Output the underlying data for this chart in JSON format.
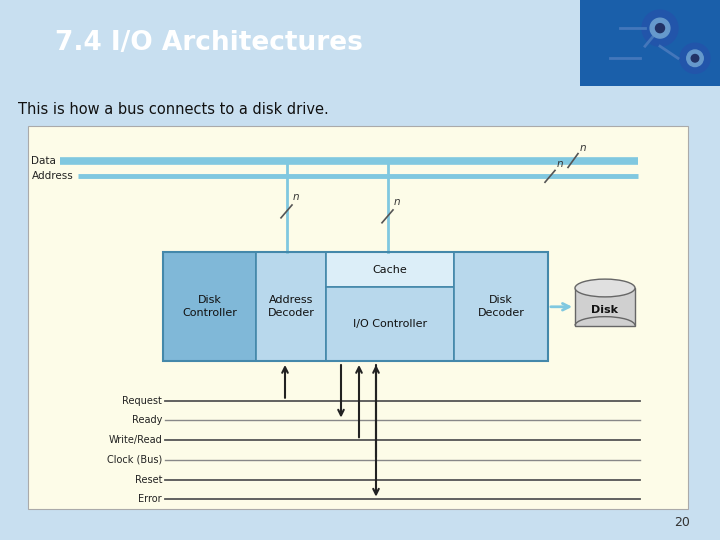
{
  "title": "7.4 I/O Architectures",
  "subtitle": "This is how a bus connects to a disk drive.",
  "title_bg": "#1e6fcc",
  "title_fg": "#ffffff",
  "body_bg": "#c8dff0",
  "diagram_bg": "#fdfce8",
  "page_number": "20",
  "data_bus_color": "#80c8e0",
  "addr_bus_color": "#80c8e0",
  "disk_ctrl_fill": "#80b8d8",
  "addr_dec_fill": "#b8d8ec",
  "io_ctrl_fill": "#b8d8ec",
  "cache_fill": "#dceef8",
  "disk_dec_fill": "#b8d8ec",
  "box_border": "#4488aa",
  "arrow_color": "#222222",
  "line_color": "#555555",
  "ctrl_line_color": "#444444",
  "light_line_color": "#888888",
  "labels": {
    "data": "Data",
    "address": "Address",
    "n": "n",
    "disk_controller": "Disk\nController",
    "address_decoder": "Address\nDecoder",
    "io_controller": "I/O Controller",
    "cache": "Cache",
    "disk_decoder": "Disk\nDecoder",
    "disk": "Disk",
    "request": "Request",
    "ready": "Ready",
    "write_read": "Write/Read",
    "clock_bus": "Clock (Bus)",
    "reset": "Reset",
    "error": "Error"
  }
}
